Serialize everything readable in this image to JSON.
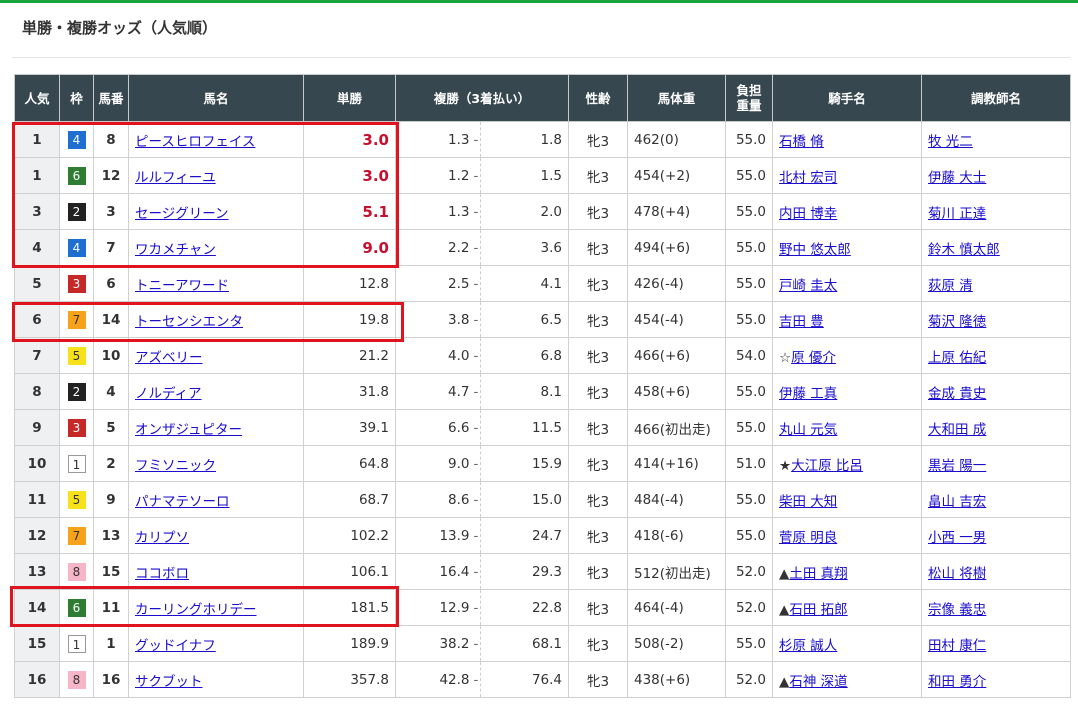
{
  "title": "単勝・複勝オッズ（人気順）",
  "headers": {
    "pop": "人気",
    "waku": "枠",
    "num": "馬番",
    "name": "馬名",
    "win": "単勝",
    "place": "複勝（3着払い）",
    "sex": "性齢",
    "weight": "馬体重",
    "kin1": "負担",
    "kin2": "重量",
    "jockey": "騎手名",
    "trainer": "調教師名"
  },
  "frame_colors": {
    "1": {
      "bg": "#ffffff",
      "fg": "#333333"
    },
    "2": {
      "bg": "#222222",
      "fg": "#ffffff"
    },
    "3": {
      "bg": "#c62828",
      "fg": "#ffffff"
    },
    "4": {
      "bg": "#1e6fd0",
      "fg": "#ffffff"
    },
    "5": {
      "bg": "#f7e11a",
      "fg": "#333333"
    },
    "6": {
      "bg": "#2e7d32",
      "fg": "#ffffff"
    },
    "7": {
      "bg": "#f7a21b",
      "fg": "#333333"
    },
    "8": {
      "bg": "#f6b6c8",
      "fg": "#333333"
    }
  },
  "highlight_color": "#e0141e",
  "rows": [
    {
      "pop": "1",
      "waku": "4",
      "num": "8",
      "name": "ピースヒロフェイス",
      "win": "3.0",
      "pmin": "1.3",
      "pmax": "1.8",
      "sex": "牝3",
      "weight": "462(0)",
      "kin": "55.0",
      "mark": "",
      "jockey": "石橋 脩",
      "trainer": "牧 光二",
      "hi": true
    },
    {
      "pop": "1",
      "waku": "6",
      "num": "12",
      "name": "ルルフィーユ",
      "win": "3.0",
      "pmin": "1.2",
      "pmax": "1.5",
      "sex": "牝3",
      "weight": "454(+2)",
      "kin": "55.0",
      "mark": "",
      "jockey": "北村 宏司",
      "trainer": "伊藤 大士",
      "hi": true
    },
    {
      "pop": "3",
      "waku": "2",
      "num": "3",
      "name": "セージグリーン",
      "win": "5.1",
      "pmin": "1.3",
      "pmax": "2.0",
      "sex": "牝3",
      "weight": "478(+4)",
      "kin": "55.0",
      "mark": "",
      "jockey": "内田 博幸",
      "trainer": "菊川 正達",
      "hi": true
    },
    {
      "pop": "4",
      "waku": "4",
      "num": "7",
      "name": "ワカメチャン",
      "win": "9.0",
      "pmin": "2.2",
      "pmax": "3.6",
      "sex": "牝3",
      "weight": "494(+6)",
      "kin": "55.0",
      "mark": "",
      "jockey": "野中 悠太郎",
      "trainer": "鈴木 慎太郎",
      "hi": true
    },
    {
      "pop": "5",
      "waku": "3",
      "num": "6",
      "name": "トニーアワード",
      "win": "12.8",
      "pmin": "2.5",
      "pmax": "4.1",
      "sex": "牝3",
      "weight": "426(-4)",
      "kin": "55.0",
      "mark": "",
      "jockey": "戸崎 圭太",
      "trainer": "荻原 清",
      "hi": false
    },
    {
      "pop": "6",
      "waku": "7",
      "num": "14",
      "name": "トーセンシエンタ",
      "win": "19.8",
      "pmin": "3.8",
      "pmax": "6.5",
      "sex": "牝3",
      "weight": "454(-4)",
      "kin": "55.0",
      "mark": "",
      "jockey": "吉田 豊",
      "trainer": "菊沢 隆徳",
      "hi": false
    },
    {
      "pop": "7",
      "waku": "5",
      "num": "10",
      "name": "アズベリー",
      "win": "21.2",
      "pmin": "4.0",
      "pmax": "6.8",
      "sex": "牝3",
      "weight": "466(+6)",
      "kin": "54.0",
      "mark": "☆",
      "jockey": "原 優介",
      "trainer": "上原 佑紀",
      "hi": false
    },
    {
      "pop": "8",
      "waku": "2",
      "num": "4",
      "name": "ノルディア",
      "win": "31.8",
      "pmin": "4.7",
      "pmax": "8.1",
      "sex": "牝3",
      "weight": "458(+6)",
      "kin": "55.0",
      "mark": "",
      "jockey": "伊藤 工真",
      "trainer": "金成 貴史",
      "hi": false
    },
    {
      "pop": "9",
      "waku": "3",
      "num": "5",
      "name": "オンザジュピター",
      "win": "39.1",
      "pmin": "6.6",
      "pmax": "11.5",
      "sex": "牝3",
      "weight": "466(初出走)",
      "kin": "55.0",
      "mark": "",
      "jockey": "丸山 元気",
      "trainer": "大和田 成",
      "hi": false
    },
    {
      "pop": "10",
      "waku": "1",
      "num": "2",
      "name": "フミソニック",
      "win": "64.8",
      "pmin": "9.0",
      "pmax": "15.9",
      "sex": "牝3",
      "weight": "414(+16)",
      "kin": "51.0",
      "mark": "★",
      "jockey": "大江原 比呂",
      "trainer": "黒岩 陽一",
      "hi": false
    },
    {
      "pop": "11",
      "waku": "5",
      "num": "9",
      "name": "パナマテソーロ",
      "win": "68.7",
      "pmin": "8.6",
      "pmax": "15.0",
      "sex": "牝3",
      "weight": "484(-4)",
      "kin": "55.0",
      "mark": "",
      "jockey": "柴田 大知",
      "trainer": "畠山 吉宏",
      "hi": false
    },
    {
      "pop": "12",
      "waku": "7",
      "num": "13",
      "name": "カリプソ",
      "win": "102.2",
      "pmin": "13.9",
      "pmax": "24.7",
      "sex": "牝3",
      "weight": "418(-6)",
      "kin": "55.0",
      "mark": "",
      "jockey": "菅原 明良",
      "trainer": "小西 一男",
      "hi": false
    },
    {
      "pop": "13",
      "waku": "8",
      "num": "15",
      "name": "ココボロ",
      "win": "106.1",
      "pmin": "16.4",
      "pmax": "29.3",
      "sex": "牝3",
      "weight": "512(初出走)",
      "kin": "52.0",
      "mark": "▲",
      "jockey": "土田 真翔",
      "trainer": "松山 将樹",
      "hi": false
    },
    {
      "pop": "14",
      "waku": "6",
      "num": "11",
      "name": "カーリングホリデー",
      "win": "181.5",
      "pmin": "12.9",
      "pmax": "22.8",
      "sex": "牝3",
      "weight": "464(-4)",
      "kin": "52.0",
      "mark": "▲",
      "jockey": "石田 拓郎",
      "trainer": "宗像 義忠",
      "hi": false
    },
    {
      "pop": "15",
      "waku": "1",
      "num": "1",
      "name": "グッドイナフ",
      "win": "189.9",
      "pmin": "38.2",
      "pmax": "68.1",
      "sex": "牝3",
      "weight": "508(-2)",
      "kin": "55.0",
      "mark": "",
      "jockey": "杉原 誠人",
      "trainer": "田村 康仁",
      "hi": false
    },
    {
      "pop": "16",
      "waku": "8",
      "num": "16",
      "name": "サクブット",
      "win": "357.8",
      "pmin": "42.8",
      "pmax": "76.4",
      "sex": "牝3",
      "weight": "438(+6)",
      "kin": "52.0",
      "mark": "▲",
      "jockey": "石神 深道",
      "trainer": "和田 勇介",
      "hi": false
    }
  ]
}
